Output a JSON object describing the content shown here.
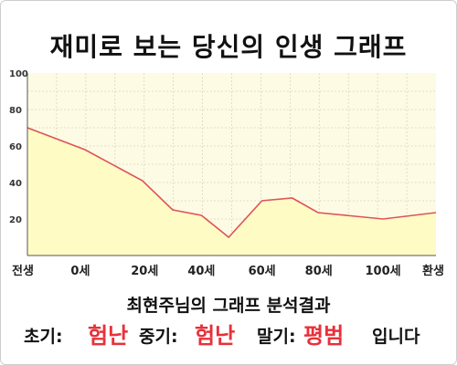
{
  "title": "재미로 보는 당신의 인생 그래프",
  "chart_data": {
    "type": "area",
    "title": "재미로 보는 당신의 인생 그래프",
    "x_tick_labels": [
      "전생",
      "0세",
      "20세",
      "40세",
      "60세",
      "80세",
      "100세",
      "환생"
    ],
    "x_tick_positions": [
      0,
      1.75,
      3.875,
      5.75,
      7.75,
      9.625,
      11.75,
      13.5
    ],
    "x": [
      0,
      1.9,
      3.8,
      4.8,
      5.75,
      6.65,
      7.75,
      8.75,
      9.6,
      11.75,
      13.5
    ],
    "y": [
      70,
      58,
      41,
      25,
      22,
      10,
      30,
      31.5,
      23.5,
      20,
      23.5
    ],
    "y_tick_labels": [
      "20",
      "40",
      "60",
      "80",
      "100"
    ],
    "ylim": [
      0,
      100
    ],
    "xlim": [
      0,
      13.5
    ],
    "grid": true,
    "line_color": "#e0525a",
    "fill_color": "#fefcc4",
    "plot_bg": "#fdfbe4"
  },
  "result": {
    "heading": "최현주님의 그래프 분석결과",
    "early_label": "초기:",
    "early_value": "험난",
    "middle_label": "중기:",
    "middle_value": "험난",
    "late_label": "말기:",
    "late_value": "평범",
    "suffix": "입니다"
  },
  "colors": {
    "accent_red": "#e8303a"
  }
}
